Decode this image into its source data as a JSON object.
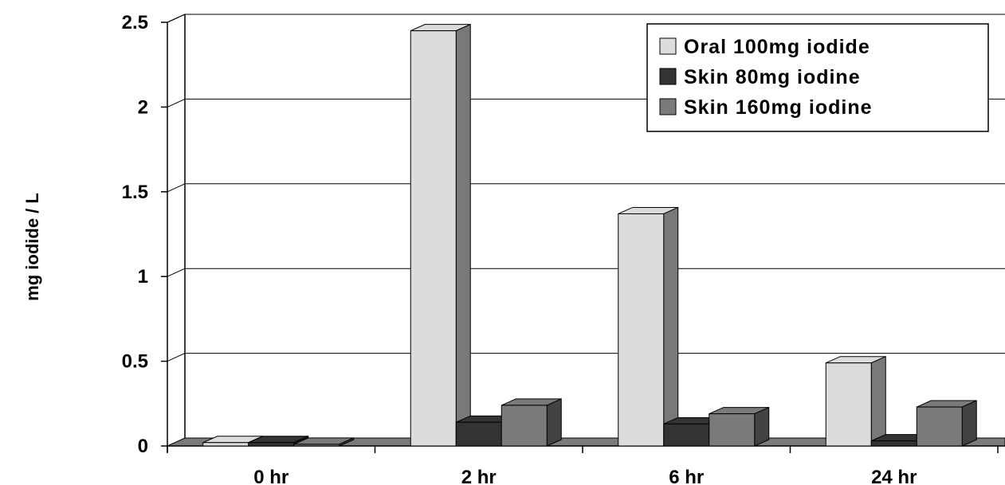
{
  "chart_data": {
    "type": "bar",
    "style": "3d-clustered-column",
    "title": "",
    "xlabel": "",
    "ylabel": "mg iodide / L",
    "ylim": [
      0,
      2.5
    ],
    "yticks": [
      "0",
      "0.5",
      "1",
      "1.5",
      "2",
      "2.5"
    ],
    "categories": [
      "0 hr",
      "2 hr",
      "6 hr",
      "24 hr"
    ],
    "series": [
      {
        "name": "Oral 100mg iodide",
        "color": "#dcdcdc",
        "values": [
          0.02,
          2.45,
          1.37,
          0.49
        ]
      },
      {
        "name": "Skin 80mg iodine",
        "color": "#333333",
        "values": [
          0.02,
          0.14,
          0.13,
          0.03
        ]
      },
      {
        "name": "Skin 160mg iodine",
        "color": "#7a7a7a",
        "values": [
          0.01,
          0.24,
          0.19,
          0.23
        ]
      }
    ],
    "grid": true,
    "legend_position": "top-right"
  }
}
